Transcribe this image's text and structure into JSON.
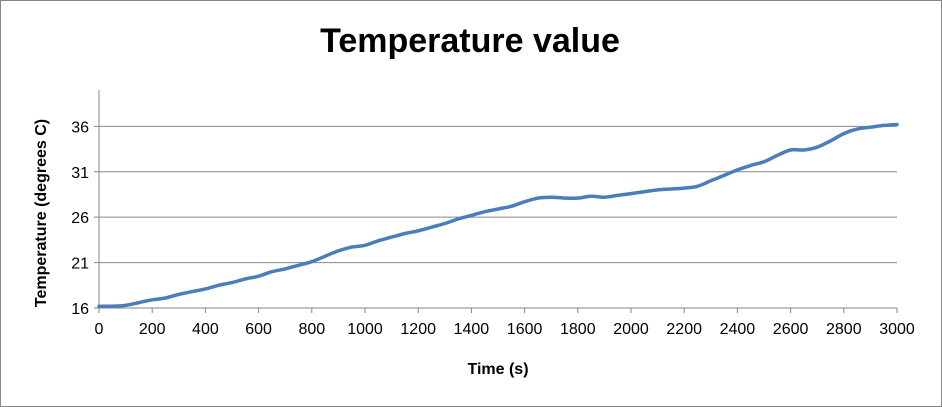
{
  "chart_data": {
    "type": "line",
    "title": "Temperature value",
    "xlabel": "Time (s)",
    "ylabel": "Temperature (degrees C)",
    "xlim": [
      0,
      3000
    ],
    "ylim": [
      16,
      40
    ],
    "x_ticks": [
      "0",
      "200",
      "400",
      "600",
      "800",
      "1000",
      "1200",
      "1400",
      "1600",
      "1800",
      "2000",
      "2200",
      "2400",
      "2600",
      "2800",
      "3000"
    ],
    "y_ticks": [
      "16",
      "21",
      "26",
      "31",
      "36"
    ],
    "grid": "horizontal",
    "legend": "none",
    "line_color": "#4a7ebb",
    "series": [
      {
        "x": [
          0,
          50,
          100,
          150,
          200,
          250,
          300,
          350,
          400,
          450,
          500,
          550,
          600,
          650,
          700,
          750,
          800,
          850,
          900,
          950,
          1000,
          1050,
          1100,
          1150,
          1200,
          1250,
          1300,
          1350,
          1400,
          1450,
          1500,
          1550,
          1600,
          1650,
          1700,
          1750,
          1800,
          1850,
          1900,
          1950,
          2000,
          2050,
          2100,
          2150,
          2200,
          2250,
          2300,
          2350,
          2400,
          2450,
          2500,
          2550,
          2600,
          2650,
          2700,
          2750,
          2800,
          2850,
          2900,
          2950,
          3000
        ],
        "y": [
          16.2,
          16.2,
          16.3,
          16.6,
          16.9,
          17.1,
          17.5,
          17.8,
          18.1,
          18.5,
          18.8,
          19.2,
          19.5,
          20.0,
          20.3,
          20.7,
          21.1,
          21.7,
          22.3,
          22.7,
          22.9,
          23.4,
          23.8,
          24.2,
          24.5,
          24.9,
          25.3,
          25.8,
          26.2,
          26.6,
          26.9,
          27.2,
          27.7,
          28.1,
          28.2,
          28.1,
          28.1,
          28.3,
          28.2,
          28.4,
          28.6,
          28.8,
          29.0,
          29.1,
          29.2,
          29.4,
          30.0,
          30.6,
          31.2,
          31.7,
          32.1,
          32.8,
          33.4,
          33.4,
          33.7,
          34.4,
          35.2,
          35.7,
          35.9,
          36.1,
          36.2
        ]
      }
    ]
  }
}
